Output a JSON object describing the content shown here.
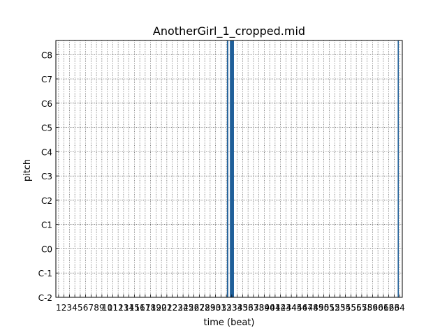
{
  "chart_data": {
    "type": "heatmap",
    "title": "AnotherGirl_1_cropped.mid",
    "xlabel": "time (beat)",
    "ylabel": "pitch",
    "xlim": [
      0,
      64
    ],
    "ylim": [
      0,
      127
    ],
    "x_ticks": [
      "1",
      "2",
      "3",
      "4",
      "5",
      "6",
      "7",
      "8",
      "9",
      "10",
      "11",
      "12",
      "13",
      "14",
      "15",
      "16",
      "17",
      "18",
      "19",
      "20",
      "21",
      "22",
      "23",
      "24",
      "25",
      "26",
      "27",
      "28",
      "29",
      "30",
      "31",
      "32",
      "33",
      "34",
      "35",
      "36",
      "37",
      "38",
      "39",
      "40",
      "41",
      "42",
      "43",
      "44",
      "45",
      "46",
      "47",
      "48",
      "49",
      "50",
      "51",
      "52",
      "53",
      "54",
      "55",
      "56",
      "57",
      "58",
      "59",
      "60",
      "61",
      "62",
      "63",
      "64"
    ],
    "y_ticks": [
      {
        "label": "C-2",
        "pitch": 0
      },
      {
        "label": "C-1",
        "pitch": 12
      },
      {
        "label": "C0",
        "pitch": 24
      },
      {
        "label": "C1",
        "pitch": 36
      },
      {
        "label": "C2",
        "pitch": 48
      },
      {
        "label": "C3",
        "pitch": 60
      },
      {
        "label": "C4",
        "pitch": 72
      },
      {
        "label": "C5",
        "pitch": 84
      },
      {
        "label": "C6",
        "pitch": 96
      },
      {
        "label": "C7",
        "pitch": 108
      },
      {
        "label": "C8",
        "pitch": 120
      }
    ],
    "grid": true,
    "note_color": "#1f5f99",
    "notes": [
      {
        "start": 31.6,
        "end": 31.85,
        "pitch_low": 0,
        "pitch_high": 127
      },
      {
        "start": 32.15,
        "end": 32.9,
        "pitch_low": 0,
        "pitch_high": 127
      },
      {
        "start": 63.15,
        "end": 63.35,
        "pitch_low": 0,
        "pitch_high": 127
      }
    ]
  }
}
